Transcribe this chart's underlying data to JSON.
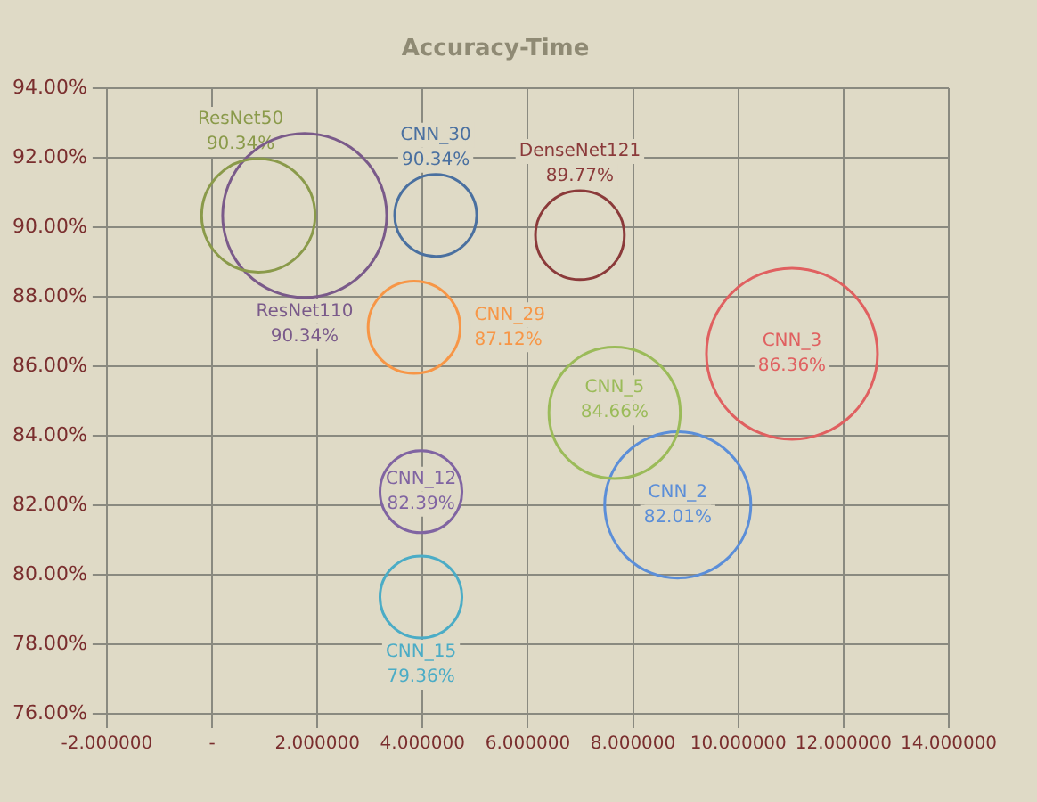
{
  "chart_data": {
    "type": "bubble",
    "title": "Accuracy-Time",
    "xlim": [
      -2,
      14
    ],
    "xticks": [
      {
        "value": -2,
        "label": "-2.000000"
      },
      {
        "value": 0,
        "label": "-"
      },
      {
        "value": 2,
        "label": "2.000000"
      },
      {
        "value": 4,
        "label": "4.000000"
      },
      {
        "value": 6,
        "label": "6.000000"
      },
      {
        "value": 8,
        "label": "8.000000"
      },
      {
        "value": 10,
        "label": "10.000000"
      },
      {
        "value": 12,
        "label": "12.000000"
      },
      {
        "value": 14,
        "label": "14.000000"
      }
    ],
    "ylim": [
      76,
      94
    ],
    "yticks": [
      {
        "value": 76,
        "label": "76.00%"
      },
      {
        "value": 78,
        "label": "78.00%"
      },
      {
        "value": 80,
        "label": "80.00%"
      },
      {
        "value": 82,
        "label": "82.00%"
      },
      {
        "value": 84,
        "label": "84.00%"
      },
      {
        "value": 86,
        "label": "86.00%"
      },
      {
        "value": 88,
        "label": "88.00%"
      },
      {
        "value": 90,
        "label": "90.00%"
      },
      {
        "value": 92,
        "label": "92.00%"
      },
      {
        "value": 94,
        "label": "94.00%"
      }
    ],
    "grid": true,
    "legend": false,
    "marker": "circle",
    "series": [
      {
        "name": "ResNet50",
        "color": "#8a9a4a",
        "x": [
          0.88
        ],
        "values": [
          90.34
        ],
        "sizes": [
          0.44
        ],
        "value_labels": [
          "90.34%"
        ]
      },
      {
        "name": "ResNet110",
        "color": "#7a5a8a",
        "x": [
          1.76
        ],
        "values": [
          90.34
        ],
        "sizes": [
          0.92
        ],
        "value_labels": [
          "90.34%"
        ]
      },
      {
        "name": "CNN_30",
        "color": "#4a70a0",
        "x": [
          4.25
        ],
        "values": [
          90.34
        ],
        "sizes": [
          0.23
        ],
        "value_labels": [
          "90.34%"
        ]
      },
      {
        "name": "DenseNet121",
        "color": "#8b3a3a",
        "x": [
          6.99
        ],
        "values": [
          89.77
        ],
        "sizes": [
          0.27
        ],
        "value_labels": [
          "89.77%"
        ]
      },
      {
        "name": "CNN_29",
        "color": "#f79646",
        "x": [
          3.84
        ],
        "values": [
          87.12
        ],
        "sizes": [
          0.29
        ],
        "value_labels": [
          "87.12%"
        ]
      },
      {
        "name": "CNN_3",
        "color": "#e06060",
        "x": [
          11.02
        ],
        "values": [
          86.36
        ],
        "sizes": [
          1
        ],
        "value_labels": [
          "86.36%"
        ]
      },
      {
        "name": "CNN_5",
        "color": "#9bbb59",
        "x": [
          7.65
        ],
        "values": [
          84.66
        ],
        "sizes": [
          0.59
        ],
        "value_labels": [
          "84.66%"
        ]
      },
      {
        "name": "CNN_2",
        "color": "#5b8ed8",
        "x": [
          8.85
        ],
        "values": [
          82.01
        ],
        "sizes": [
          0.73
        ],
        "value_labels": [
          "82.01%"
        ]
      },
      {
        "name": "CNN_12",
        "color": "#8064a2",
        "x": [
          3.97
        ],
        "values": [
          82.39
        ],
        "sizes": [
          0.23
        ],
        "value_labels": [
          "82.39%"
        ]
      },
      {
        "name": "CNN_15",
        "color": "#4bacc6",
        "x": [
          3.97
        ],
        "values": [
          79.36
        ],
        "sizes": [
          0.23
        ],
        "value_labels": [
          "79.36%"
        ]
      }
    ]
  }
}
